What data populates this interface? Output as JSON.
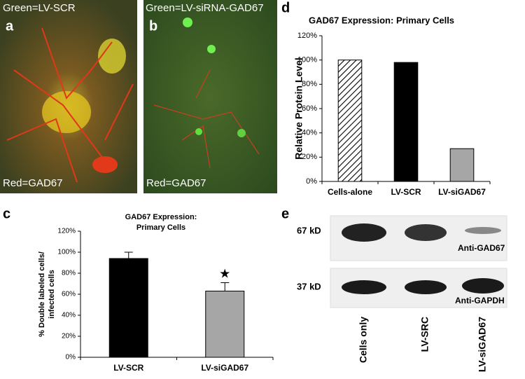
{
  "panels": {
    "a": {
      "letter": "a",
      "top_label": "Green=LV-SCR",
      "bottom_label": "Red=GAD67"
    },
    "b": {
      "letter": "b",
      "top_label": "Green=LV-siRNA-GAD67",
      "bottom_label": "Red=GAD67"
    },
    "c": {
      "letter": "c"
    },
    "d": {
      "letter": "d"
    },
    "e": {
      "letter": "e",
      "bands": [
        "67 kD",
        "37 kD"
      ],
      "antibodies": [
        "Anti-GAD67",
        "Anti-GAPDH"
      ],
      "lanes": [
        "Cells only",
        "LV-SRC",
        "LV-siGAD67"
      ]
    }
  },
  "chart_data": [
    {
      "type": "bar",
      "title": [
        "GAD67 Expression:",
        "Primary Cells"
      ],
      "ylabel": [
        "% Double labeled cells/",
        "infected cells"
      ],
      "categories": [
        "LV-SCR",
        "LV-siGAD67"
      ],
      "values": [
        94,
        63
      ],
      "errors": [
        6,
        8
      ],
      "colors": [
        "#000000",
        "#a6a6a6"
      ],
      "hatch": [
        false,
        false
      ],
      "annotation": "★",
      "ylim": [
        0,
        120
      ],
      "yticks": [
        {
          "value": 0,
          "label": "0%"
        },
        {
          "value": 20,
          "label": "20%"
        },
        {
          "value": 40,
          "label": "40%"
        },
        {
          "value": 60,
          "label": "60%"
        },
        {
          "value": 80,
          "label": "80%"
        },
        {
          "value": 100,
          "label": "100%"
        },
        {
          "value": 120,
          "label": "120%"
        }
      ],
      "grid": false
    },
    {
      "type": "bar",
      "title": "GAD67 Expression: Primary Cells",
      "ylabel": "Relative Protein Level",
      "categories": [
        "Cells-alone",
        "LV-SCR",
        "LV-siGAD67"
      ],
      "values": [
        100,
        98,
        27
      ],
      "colors": [
        "#ffffff",
        "#000000",
        "#a6a6a6"
      ],
      "hatch": [
        true,
        false,
        false
      ],
      "ylim": [
        0,
        120
      ],
      "yticks": [
        {
          "value": 0,
          "label": "0%"
        },
        {
          "value": 20,
          "label": "20%"
        },
        {
          "value": 40,
          "label": "40%"
        },
        {
          "value": 60,
          "label": "60%"
        },
        {
          "value": 80,
          "label": "80%"
        },
        {
          "value": 100,
          "label": "100%"
        },
        {
          "value": 120,
          "label": "120%"
        }
      ],
      "grid": false
    }
  ]
}
